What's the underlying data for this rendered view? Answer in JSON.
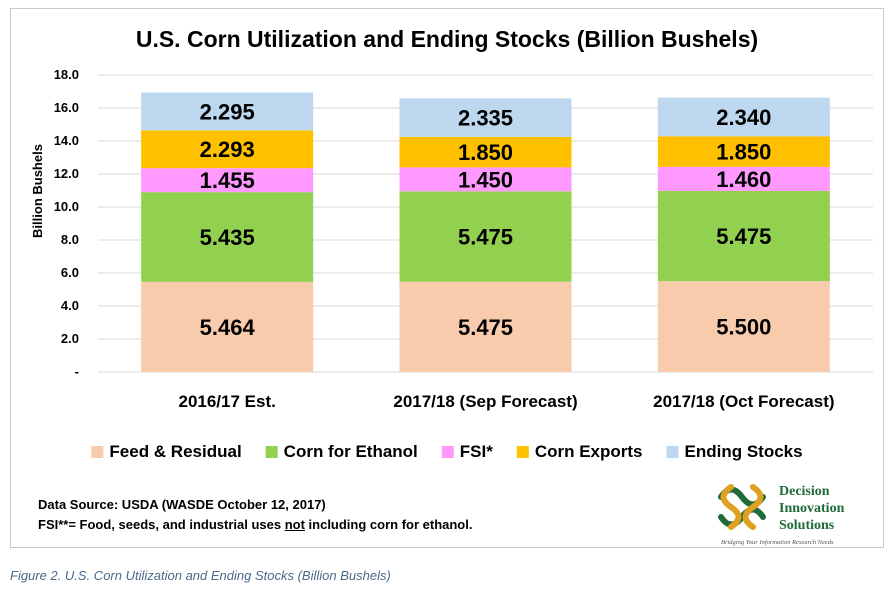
{
  "chart_data": {
    "type": "bar",
    "stacked": true,
    "title": "U.S. Corn Utilization and Ending Stocks (Billion Bushels)",
    "ylabel": "Billion Bushels",
    "xlabel": "",
    "ylim": [
      0,
      18
    ],
    "yticks": [
      "-",
      "2.0",
      "4.0",
      "6.0",
      "8.0",
      "10.0",
      "12.0",
      "14.0",
      "16.0",
      "18.0"
    ],
    "grid": true,
    "legend_position": "bottom",
    "categories": [
      "2016/17 Est.",
      "2017/18 (Sep Forecast)",
      "2017/18 (Oct Forecast)"
    ],
    "series": [
      {
        "name": "Feed & Residual",
        "color": "#f8cbad",
        "values": [
          5.464,
          5.475,
          5.5
        ],
        "labels": [
          "5.464",
          "5.475",
          "5.500"
        ]
      },
      {
        "name": "Corn for Ethanol",
        "color": "#92d050",
        "values": [
          5.435,
          5.475,
          5.475
        ],
        "labels": [
          "5.435",
          "5.475",
          "5.475"
        ]
      },
      {
        "name": "FSI*",
        "color": "#ff99ff",
        "values": [
          1.455,
          1.45,
          1.46
        ],
        "labels": [
          "1.455",
          "1.450",
          "1.460"
        ]
      },
      {
        "name": "Corn Exports",
        "color": "#ffc000",
        "values": [
          2.293,
          1.85,
          1.85
        ],
        "labels": [
          "2.293",
          "1.850",
          "1.850"
        ]
      },
      {
        "name": "Ending Stocks",
        "color": "#bdd7ee",
        "values": [
          2.295,
          2.335,
          2.34
        ],
        "labels": [
          "2.295",
          "2.335",
          "2.340"
        ]
      }
    ]
  },
  "notes": {
    "source": "Data Source: USDA (WASDE October 12, 2017)",
    "fsi_before": "FSI**= Food, seeds, and industrial uses ",
    "fsi_underlined": "not",
    "fsi_after": " including corn for ethanol."
  },
  "logo": {
    "line1": "Decision",
    "line2": "Innovation",
    "line3": "Solutions",
    "tagline": "Bridging Your Information Research Needs",
    "color": "#1f6b3a",
    "accent": "#e0a020"
  },
  "caption": "Figure 2. U.S. Corn Utilization and Ending Stocks (Billion Bushels)"
}
